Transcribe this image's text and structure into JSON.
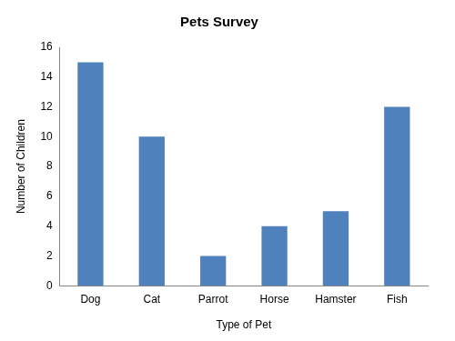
{
  "chart_data": {
    "type": "bar",
    "title": "Pets Survey",
    "x_label": "Type of Pet",
    "y_label": "Number of Children",
    "categories": [
      "Dog",
      "Cat",
      "Parrot",
      "Horse",
      "Hamster",
      "Fish"
    ],
    "values": [
      15,
      10,
      2,
      4,
      5,
      12
    ],
    "color": "#4f81bd",
    "ylim": [
      0,
      16
    ],
    "yticks": [
      0,
      2,
      4,
      6,
      8,
      10,
      12,
      14,
      16
    ],
    "grid": false
  }
}
